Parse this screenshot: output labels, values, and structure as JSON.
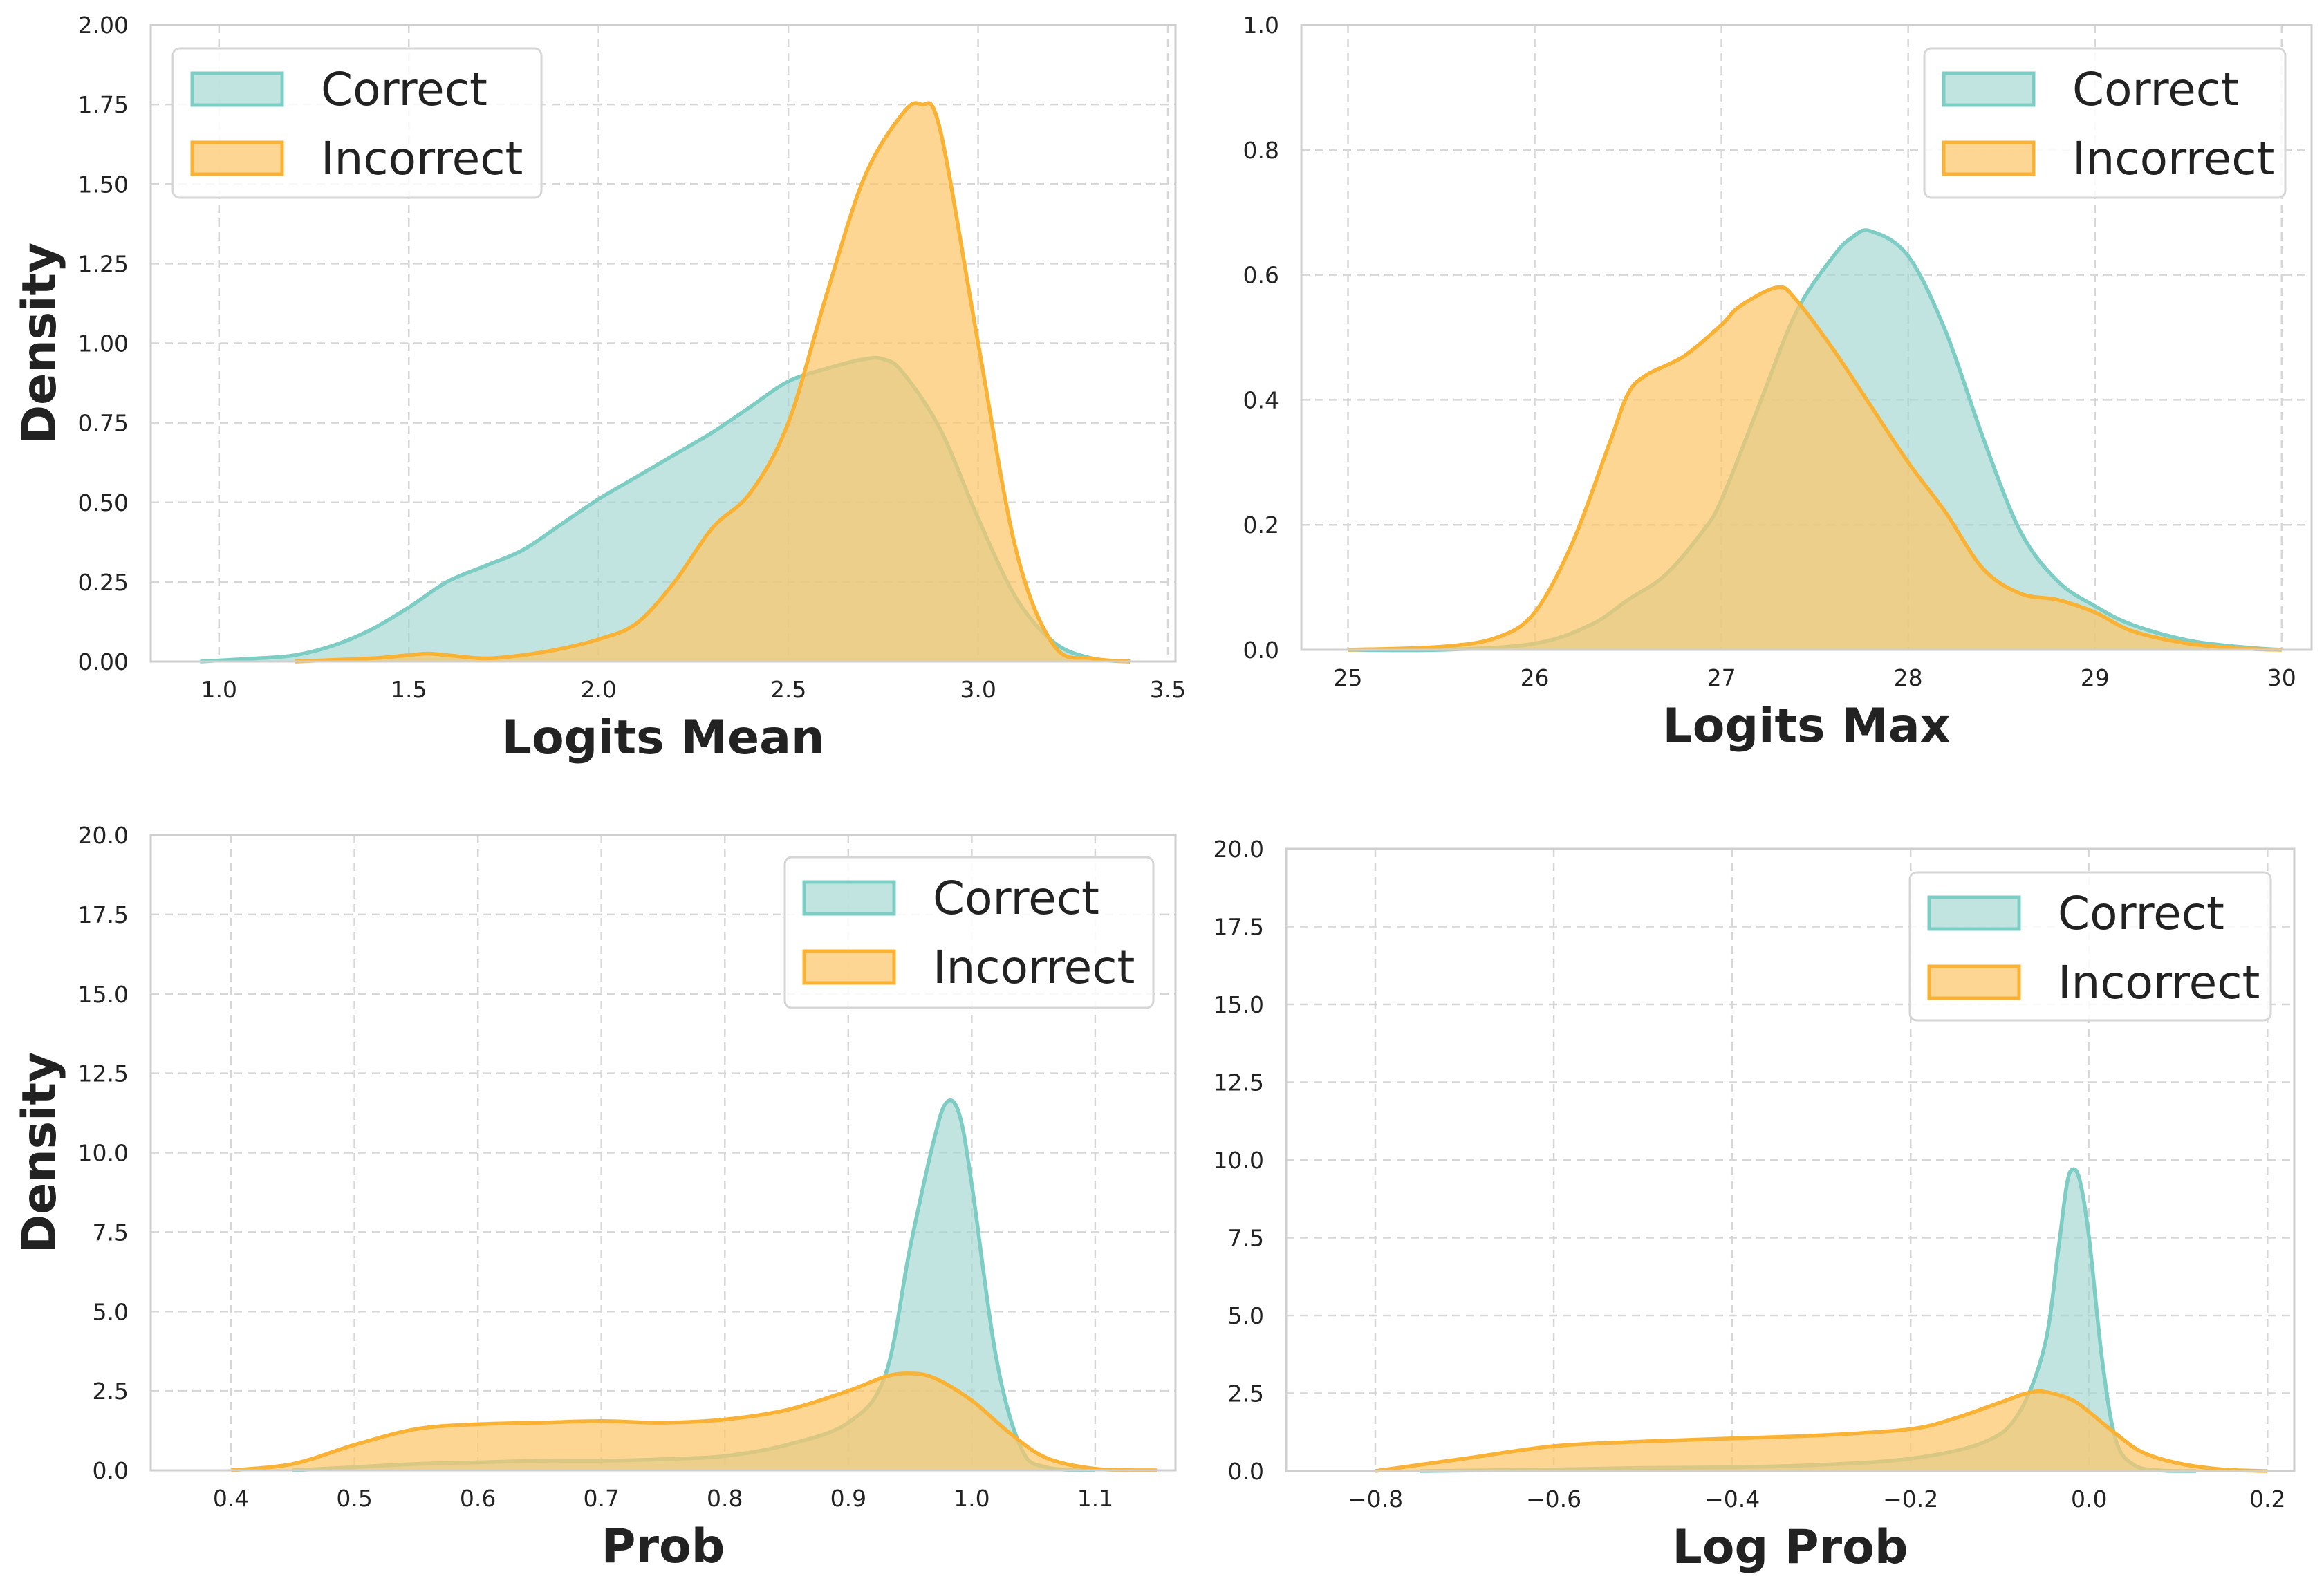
{
  "colors": {
    "correct_line": "#7ecdc4",
    "correct_fill": "#9fd6d0",
    "incorrect_line": "#f9b233",
    "incorrect_fill": "#fcc66a"
  },
  "chart_data": [
    {
      "type": "area",
      "title": "",
      "xlabel": "Logits Mean",
      "ylabel": "Density",
      "xlim": [
        0.82,
        3.52
      ],
      "ylim": [
        0,
        2.0
      ],
      "xticks": [
        1.0,
        1.5,
        2.0,
        2.5,
        3.0,
        3.5
      ],
      "xtick_labels": [
        "1.0",
        "1.5",
        "2.0",
        "2.5",
        "3.0",
        "3.5"
      ],
      "yticks": [
        0,
        0.25,
        0.5,
        0.75,
        1.0,
        1.25,
        1.5,
        1.75,
        2.0
      ],
      "ytick_labels": [
        "0.00",
        "0.25",
        "0.50",
        "0.75",
        "1.00",
        "1.25",
        "1.50",
        "1.75",
        "2.00"
      ],
      "grid": true,
      "legend_position": "upper-left",
      "series": [
        {
          "name": "Correct",
          "x": [
            0.95,
            1.1,
            1.2,
            1.3,
            1.4,
            1.5,
            1.6,
            1.7,
            1.8,
            1.9,
            2.0,
            2.1,
            2.2,
            2.3,
            2.4,
            2.5,
            2.6,
            2.7,
            2.75,
            2.8,
            2.9,
            3.0,
            3.1,
            3.2,
            3.3,
            3.4
          ],
          "y": [
            0.0,
            0.01,
            0.02,
            0.05,
            0.1,
            0.17,
            0.25,
            0.3,
            0.35,
            0.43,
            0.51,
            0.58,
            0.65,
            0.72,
            0.8,
            0.88,
            0.92,
            0.95,
            0.95,
            0.91,
            0.73,
            0.45,
            0.2,
            0.06,
            0.01,
            0.0
          ]
        },
        {
          "name": "Incorrect",
          "x": [
            1.2,
            1.4,
            1.5,
            1.55,
            1.6,
            1.7,
            1.8,
            1.9,
            2.0,
            2.1,
            2.2,
            2.3,
            2.4,
            2.5,
            2.6,
            2.7,
            2.8,
            2.85,
            2.9,
            3.0,
            3.1,
            3.2,
            3.3,
            3.4
          ],
          "y": [
            0.0,
            0.01,
            0.02,
            0.025,
            0.02,
            0.01,
            0.02,
            0.04,
            0.07,
            0.12,
            0.25,
            0.42,
            0.53,
            0.75,
            1.15,
            1.52,
            1.72,
            1.75,
            1.67,
            1.0,
            0.35,
            0.05,
            0.01,
            0.0
          ]
        }
      ]
    },
    {
      "type": "area",
      "title": "",
      "xlabel": "Logits Max",
      "ylabel": "",
      "xlim": [
        24.75,
        30.16
      ],
      "ylim": [
        0,
        1.0
      ],
      "xticks": [
        25,
        26,
        27,
        28,
        29,
        30
      ],
      "xtick_labels": [
        "25",
        "26",
        "27",
        "28",
        "29",
        "30"
      ],
      "yticks": [
        0,
        0.2,
        0.4,
        0.6,
        0.8,
        1.0
      ],
      "ytick_labels": [
        "0.0",
        "0.2",
        "0.4",
        "0.6",
        "0.8",
        "1.0"
      ],
      "grid": true,
      "legend_position": "upper-right",
      "series": [
        {
          "name": "Correct",
          "x": [
            25.0,
            25.5,
            26.0,
            26.3,
            26.5,
            26.7,
            26.9,
            27.0,
            27.2,
            27.4,
            27.6,
            27.7,
            27.8,
            28.0,
            28.2,
            28.4,
            28.6,
            28.8,
            29.0,
            29.2,
            29.5,
            29.8,
            30.0
          ],
          "y": [
            0.0,
            0.0,
            0.01,
            0.04,
            0.08,
            0.12,
            0.19,
            0.24,
            0.39,
            0.54,
            0.63,
            0.66,
            0.67,
            0.63,
            0.51,
            0.34,
            0.19,
            0.11,
            0.07,
            0.04,
            0.015,
            0.004,
            0.0
          ]
        },
        {
          "name": "Incorrect",
          "x": [
            25.0,
            25.5,
            25.8,
            26.0,
            26.2,
            26.4,
            26.5,
            26.6,
            26.8,
            27.0,
            27.1,
            27.3,
            27.4,
            27.6,
            27.8,
            28.0,
            28.2,
            28.4,
            28.6,
            28.8,
            29.0,
            29.2,
            29.5,
            29.8,
            30.0
          ],
          "y": [
            0.0,
            0.005,
            0.02,
            0.06,
            0.17,
            0.33,
            0.41,
            0.44,
            0.47,
            0.52,
            0.55,
            0.58,
            0.56,
            0.48,
            0.39,
            0.3,
            0.22,
            0.13,
            0.09,
            0.08,
            0.06,
            0.03,
            0.01,
            0.002,
            0.0
          ]
        }
      ]
    },
    {
      "type": "area",
      "title": "",
      "xlabel": "Prob",
      "ylabel": "Density",
      "xlim": [
        0.335,
        1.165
      ],
      "ylim": [
        0,
        20.0
      ],
      "xticks": [
        0.4,
        0.5,
        0.6,
        0.7,
        0.8,
        0.9,
        1.0,
        1.1
      ],
      "xtick_labels": [
        "0.4",
        "0.5",
        "0.6",
        "0.7",
        "0.8",
        "0.9",
        "1.0",
        "1.1"
      ],
      "yticks": [
        0,
        2.5,
        5.0,
        7.5,
        10.0,
        12.5,
        15.0,
        17.5,
        20.0
      ],
      "ytick_labels": [
        "0.0",
        "2.5",
        "5.0",
        "7.5",
        "10.0",
        "12.5",
        "15.0",
        "17.5",
        "20.0"
      ],
      "grid": true,
      "legend_position": "upper-right",
      "series": [
        {
          "name": "Correct",
          "x": [
            0.45,
            0.5,
            0.55,
            0.6,
            0.65,
            0.7,
            0.75,
            0.8,
            0.85,
            0.9,
            0.93,
            0.95,
            0.97,
            0.98,
            0.99,
            1.0,
            1.02,
            1.04,
            1.06,
            1.1
          ],
          "y": [
            0.0,
            0.1,
            0.2,
            0.25,
            0.3,
            0.3,
            0.35,
            0.45,
            0.8,
            1.5,
            3.0,
            7.0,
            10.5,
            11.6,
            11.2,
            9.0,
            3.5,
            0.7,
            0.1,
            0.0
          ]
        },
        {
          "name": "Incorrect",
          "x": [
            0.4,
            0.45,
            0.5,
            0.55,
            0.6,
            0.65,
            0.7,
            0.75,
            0.8,
            0.85,
            0.9,
            0.93,
            0.95,
            0.97,
            1.0,
            1.03,
            1.06,
            1.1,
            1.15
          ],
          "y": [
            0.0,
            0.2,
            0.8,
            1.3,
            1.45,
            1.5,
            1.55,
            1.5,
            1.6,
            1.9,
            2.5,
            2.95,
            3.05,
            2.9,
            2.2,
            1.2,
            0.4,
            0.05,
            0.0
          ]
        }
      ]
    },
    {
      "type": "area",
      "title": "",
      "xlabel": "Log Prob",
      "ylabel": "",
      "xlim": [
        -0.9,
        0.23
      ],
      "ylim": [
        0,
        20.0
      ],
      "xticks": [
        -0.8,
        -0.6,
        -0.4,
        -0.2,
        0.0,
        0.2
      ],
      "xtick_labels": [
        "−0.8",
        "−0.6",
        "−0.4",
        "−0.2",
        "0.0",
        "0.2"
      ],
      "yticks": [
        0,
        2.5,
        5.0,
        7.5,
        10.0,
        12.5,
        15.0,
        17.5,
        20.0
      ],
      "ytick_labels": [
        "0.0",
        "2.5",
        "5.0",
        "7.5",
        "10.0",
        "12.5",
        "15.0",
        "17.5",
        "20.0"
      ],
      "grid": true,
      "legend_position": "upper-right",
      "series": [
        {
          "name": "Correct",
          "x": [
            -0.75,
            -0.6,
            -0.5,
            -0.4,
            -0.3,
            -0.2,
            -0.12,
            -0.08,
            -0.05,
            -0.035,
            -0.025,
            -0.018,
            -0.01,
            0.0,
            0.015,
            0.03,
            0.05,
            0.08,
            0.12
          ],
          "y": [
            0.0,
            0.05,
            0.1,
            0.12,
            0.2,
            0.4,
            0.9,
            1.8,
            4.0,
            7.0,
            9.2,
            9.7,
            9.3,
            7.5,
            3.5,
            1.0,
            0.2,
            0.02,
            0.0
          ]
        },
        {
          "name": "Incorrect",
          "x": [
            -0.8,
            -0.7,
            -0.6,
            -0.5,
            -0.4,
            -0.3,
            -0.2,
            -0.15,
            -0.1,
            -0.07,
            -0.05,
            -0.02,
            0.0,
            0.03,
            0.06,
            0.1,
            0.15,
            0.2
          ],
          "y": [
            0.0,
            0.4,
            0.8,
            0.95,
            1.05,
            1.15,
            1.35,
            1.7,
            2.2,
            2.5,
            2.55,
            2.3,
            1.9,
            1.2,
            0.6,
            0.25,
            0.05,
            0.0
          ]
        }
      ]
    }
  ]
}
